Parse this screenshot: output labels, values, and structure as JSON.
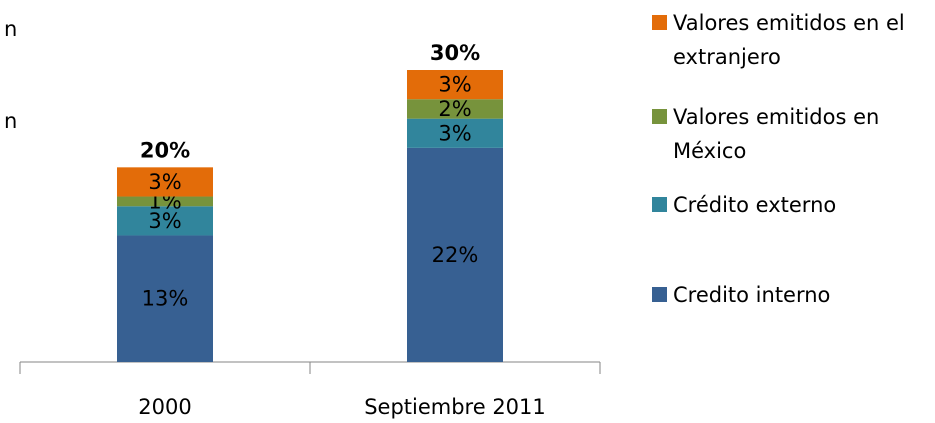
{
  "chart_data": {
    "type": "stacked_bar",
    "annotations": [
      "n",
      "n"
    ],
    "categories": [
      "2000",
      "Septiembre 2011"
    ],
    "series": [
      {
        "name": "Credito interno",
        "color": "#376092",
        "values": [
          13,
          22
        ],
        "value_labels": [
          "13%",
          "22%"
        ]
      },
      {
        "name": "Crédito externo",
        "color": "#31859c",
        "values": [
          3,
          3
        ],
        "value_labels": [
          "3%",
          "3%"
        ]
      },
      {
        "name": "Valores emitidos en México",
        "color": "#77933c",
        "values": [
          1,
          2
        ],
        "value_labels": [
          "1%",
          "2%"
        ]
      },
      {
        "name": "Valores emitidos en el extranjero",
        "color": "#e36c09",
        "values": [
          3,
          3
        ],
        "value_labels": [
          "3%",
          "3%"
        ]
      }
    ],
    "totals": [
      20,
      30
    ],
    "total_labels": [
      "20%",
      "30%"
    ],
    "legend": "right"
  }
}
